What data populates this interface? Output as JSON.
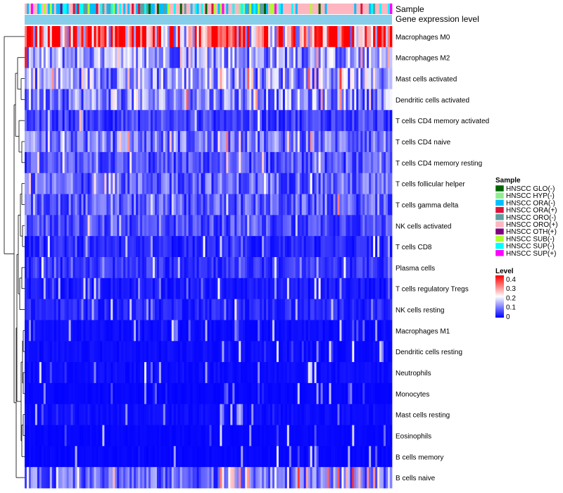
{
  "chart_data": {
    "type": "heatmap",
    "annotation_labels": {
      "sample": "Sample",
      "gene_expression": "Gene expression level"
    },
    "rows": [
      "Macrophages M0",
      "Macrophages M2",
      "Mast cells activated",
      "Dendritic cells activated",
      "T cells CD4 memory activated",
      "T cells CD4 naive",
      "T cells CD4 memory resting",
      "T cells follicular helper",
      "T cells gamma delta",
      "NK cells activated",
      "T cells CD8",
      "Plasma cells",
      "T cells regulatory  Tregs",
      "NK cells resting",
      "Macrophages M1",
      "Dendritic cells resting",
      "Neutrophils",
      "Monocytes",
      "Mast cells resting",
      "Eosinophils",
      "B cells memory",
      "B cells naive"
    ],
    "approx_mean_level": [
      0.32,
      0.12,
      0.13,
      0.11,
      0.05,
      0.09,
      0.06,
      0.08,
      0.07,
      0.06,
      0.03,
      0.04,
      0.02,
      0.03,
      0.01,
      0.01,
      0.01,
      0.005,
      0.01,
      0.005,
      0.005,
      0.08
    ],
    "n_samples": 175,
    "sample_legend": {
      "title": "Sample",
      "items": [
        {
          "label": "HNSCC GLO(-)",
          "color": "#006400"
        },
        {
          "label": "HNSCC HYP(-)",
          "color": "#90EE90"
        },
        {
          "label": "HNSCC ORA(-)",
          "color": "#00BFFF"
        },
        {
          "label": "HNSCC ORA(+)",
          "color": "#DC143C"
        },
        {
          "label": "HNSCC ORO(-)",
          "color": "#5F9EA0"
        },
        {
          "label": "HNSCC ORO(+)",
          "color": "#FFB6C1"
        },
        {
          "label": "HNSCC OTH(+)",
          "color": "#800080"
        },
        {
          "label": "HNSCC SUB(-)",
          "color": "#ADFF2F"
        },
        {
          "label": "HNSCC SUP(-)",
          "color": "#00FFFF"
        },
        {
          "label": "HNSCC SUP(+)",
          "color": "#FF00FF"
        }
      ]
    },
    "level_legend": {
      "title": "Level",
      "ticks": [
        "0.4",
        "0.3",
        "0.2",
        "0.1",
        "0"
      ],
      "range": [
        0,
        0.4
      ],
      "colors": {
        "low": "#0000FF",
        "mid": "#FFFFFF",
        "high": "#FF0000"
      }
    },
    "gene_expression_bar_color": "#87CEEB"
  }
}
